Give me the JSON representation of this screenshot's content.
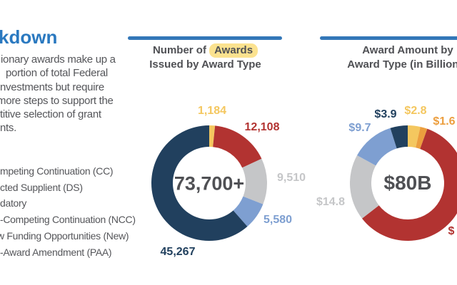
{
  "slide": {
    "section_title_fragment": "kdown",
    "intro_paragraph_lines": [
      "ionary awards make up a",
      "portion of total Federal",
      "nvestments but require",
      "more steps to support the",
      "titive selection of grant",
      "nts."
    ],
    "legend_items": [
      "mpeting Continuation (CC)",
      "cted Supplient (DS)",
      "datory",
      "-Competing Continuation (NCC)",
      "w Funding Opportunities (New)",
      "-Award Amendment (PAA)"
    ]
  },
  "colors": {
    "accent_blue": "#2A79C0",
    "divider_blue": "#3377B8",
    "heading_text": "#4F5054",
    "body_text": "#55565A",
    "highlight_yellow": "#FBE28F",
    "navy": "#21405E",
    "red": "#B23331",
    "gray": "#C5C6C8",
    "light_blue": "#7E9FD1",
    "yellow": "#F4C75F",
    "orange": "#EC9E3E"
  },
  "chart_data": [
    {
      "type": "donut",
      "title_prefix": "Number of",
      "title_highlighted_word": "Awards",
      "title_line2": "Issued by Award Type",
      "center_label": "73,700+",
      "start_angle_deg": 0,
      "direction": "clockwise",
      "legend_position": "outside-labels",
      "segments": [
        {
          "label": "1,184",
          "value": 1184,
          "color": "#F4C75F"
        },
        {
          "label": "12,108",
          "value": 12108,
          "color": "#B23331"
        },
        {
          "label": "9,510",
          "value": 9510,
          "color": "#C5C6C8"
        },
        {
          "label": "5,580",
          "value": 5580,
          "color": "#7E9FD1"
        },
        {
          "label": "45,267",
          "value": 45267,
          "color": "#21405E"
        }
      ]
    },
    {
      "type": "donut",
      "title_line1": "Award Amount by",
      "title_line2": "Award Type (in Billions)",
      "center_label": "$80B",
      "start_angle_deg": 0,
      "direction": "clockwise",
      "legend_position": "outside-labels",
      "segments": [
        {
          "label": "$2.8",
          "value": 2.8,
          "color": "#F4C75F"
        },
        {
          "label": "$1.6",
          "value": 1.6,
          "color": "#EC9E3E"
        },
        {
          "label": "$",
          "value": 47.2,
          "color": "#B23331"
        },
        {
          "label": "$14.8",
          "value": 14.8,
          "color": "#C5C6C8"
        },
        {
          "label": "$9.7",
          "value": 9.7,
          "color": "#7E9FD1"
        },
        {
          "label": "$3.9",
          "value": 3.9,
          "color": "#21405E"
        }
      ]
    }
  ]
}
